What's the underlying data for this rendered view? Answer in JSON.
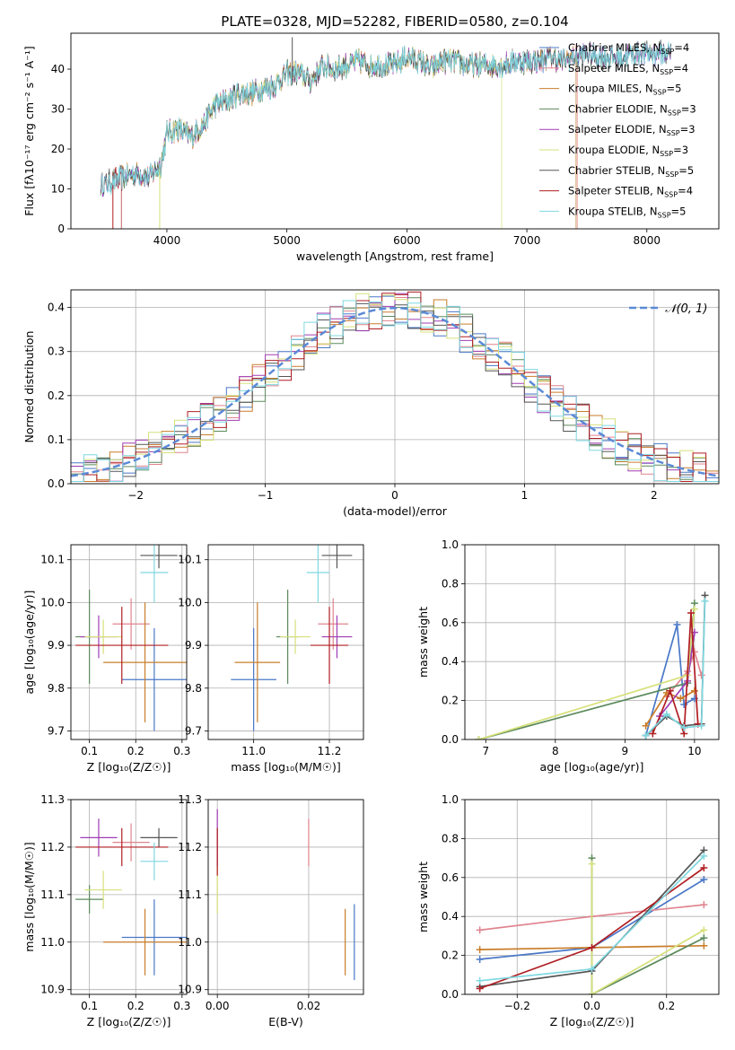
{
  "figure": {
    "title": "PLATE=0328, MJD=52282, FIBERID=0580, z=0.104"
  },
  "legend_entries": [
    {
      "name": "Chabrier MILES, N",
      "sub": "SSP",
      "tail": "=4",
      "color": "#4a78c7"
    },
    {
      "name": "Salpeter MILES, N",
      "sub": "SSP",
      "tail": "=4",
      "color": "#e0848e"
    },
    {
      "name": "Kroupa MILES, N",
      "sub": "SSP",
      "tail": "=5",
      "color": "#c97d2a"
    },
    {
      "name": "Chabrier ELODIE, N",
      "sub": "SSP",
      "tail": "=3",
      "color": "#5c8a5c"
    },
    {
      "name": "Salpeter ELODIE, N",
      "sub": "SSP",
      "tail": "=3",
      "color": "#a03cb4"
    },
    {
      "name": "Kroupa ELODIE, N",
      "sub": "SSP",
      "tail": "=3",
      "color": "#d6e07a"
    },
    {
      "name": "Chabrier STELIB, N",
      "sub": "SSP",
      "tail": "=5",
      "color": "#555555"
    },
    {
      "name": "Salpeter STELIB, N",
      "sub": "SSP",
      "tail": "=4",
      "color": "#b01e22"
    },
    {
      "name": "Kroupa STELIB, N",
      "sub": "SSP",
      "tail": "=5",
      "color": "#7fd8e0"
    }
  ],
  "colors": {
    "cMILES": "#4a78c7",
    "sMILES": "#e0848e",
    "kMILES": "#c97d2a",
    "cELODIE": "#5c8a5c",
    "sELODIE": "#a03cb4",
    "kELODIE": "#d6e07a",
    "cSTELIB": "#555555",
    "sSTELIB": "#b01e22",
    "kSTELIB": "#7fd8e0"
  },
  "chart_data": [
    {
      "id": "spectrum",
      "type": "line",
      "xlabel": "wavelength [Angstrom, rest frame]",
      "ylabel": "Flux [fλ10⁻¹⁷ erg cm⁻² s⁻¹ A⁻¹]",
      "xlim": [
        3200,
        8600
      ],
      "ylim": [
        0,
        49
      ],
      "xticks": [
        4000,
        5000,
        6000,
        7000,
        8000
      ],
      "yticks": [
        0,
        10,
        20,
        30,
        40
      ],
      "x": [
        3450,
        3550,
        3650,
        3750,
        3850,
        3950,
        4000,
        4100,
        4200,
        4300,
        4400,
        4500,
        4600,
        4700,
        4800,
        4900,
        5000,
        5100,
        5200,
        5300,
        5400,
        5500,
        5600,
        5700,
        5800,
        5900,
        6000,
        6100,
        6200,
        6300,
        6400,
        6500,
        6600,
        6700,
        6800,
        6900,
        7000,
        7100,
        7200,
        7300,
        7400,
        7500,
        7600,
        7700,
        7800,
        7900,
        8000,
        8100,
        8200
      ],
      "y": [
        11,
        12,
        13,
        14,
        13,
        16,
        24,
        25,
        23,
        26,
        31,
        32,
        34,
        34,
        35,
        36,
        39,
        39,
        37,
        41,
        40,
        41,
        42,
        41,
        41,
        41,
        43,
        42,
        40,
        42,
        42,
        41,
        41,
        41,
        41,
        42,
        42,
        42,
        43,
        42,
        43,
        44,
        43,
        43,
        43,
        44,
        44,
        44,
        44
      ],
      "grid": false,
      "legend": "top-right"
    },
    {
      "id": "residuals",
      "type": "histogram",
      "xlabel": "(data-model)/error",
      "ylabel": "Normed distribution",
      "xlim": [
        -2.5,
        2.5
      ],
      "ylim": [
        0,
        0.44
      ],
      "xticks": [
        -2,
        -1,
        0,
        1,
        2
      ],
      "yticks": [
        0.0,
        0.1,
        0.2,
        0.3,
        0.4
      ],
      "normal_label": "𝒩(0, 1)",
      "grid": true,
      "legend": "top-right"
    },
    {
      "id": "age_vs_Z",
      "type": "errorbar",
      "xlabel": "Z [log₁₀(Z/Z☉)]",
      "ylabel": "age  [log₁₀(age/yr)]",
      "xlim": [
        0.06,
        0.31
      ],
      "ylim": [
        9.68,
        10.135
      ],
      "xticks": [
        0.1,
        0.2,
        0.3
      ],
      "yticks": [
        9.7,
        9.8,
        9.9,
        10.0,
        10.1
      ],
      "points": [
        {
          "c": "cMILES",
          "x": 0.24,
          "y": 9.82,
          "xe": 0.07,
          "ye": 0.12
        },
        {
          "c": "sMILES",
          "x": 0.19,
          "y": 9.95,
          "xe": 0.04,
          "ye": 0.06
        },
        {
          "c": "kMILES",
          "x": 0.22,
          "y": 9.86,
          "xe": 0.09,
          "ye": 0.14
        },
        {
          "c": "cELODIE",
          "x": 0.1,
          "y": 9.92,
          "xe": 0.03,
          "ye": 0.11
        },
        {
          "c": "sELODIE",
          "x": 0.12,
          "y": 9.92,
          "xe": 0.04,
          "ye": 0.05
        },
        {
          "c": "kELODIE",
          "x": 0.13,
          "y": 9.92,
          "xe": 0.04,
          "ye": 0.04
        },
        {
          "c": "cSTELIB",
          "x": 0.25,
          "y": 10.11,
          "xe": 0.04,
          "ye": 0.03
        },
        {
          "c": "sSTELIB",
          "x": 0.17,
          "y": 9.9,
          "xe": 0.1,
          "ye": 0.09
        },
        {
          "c": "kSTELIB",
          "x": 0.24,
          "y": 10.07,
          "xe": 0.03,
          "ye": 0.07
        }
      ]
    },
    {
      "id": "age_vs_mass",
      "type": "errorbar",
      "xlabel": "mass [log₁₀(M/M☉)]",
      "ylabel": "",
      "xlim": [
        10.88,
        11.29
      ],
      "ylim": [
        9.68,
        10.135
      ],
      "xticks": [
        11.0,
        11.2
      ],
      "yticks": [
        9.7,
        9.8,
        9.9,
        10.0,
        10.1
      ],
      "points": [
        {
          "c": "cMILES",
          "x": 11.0,
          "y": 9.82,
          "xe": 0.06,
          "ye": 0.12
        },
        {
          "c": "sMILES",
          "x": 11.21,
          "y": 9.95,
          "xe": 0.04,
          "ye": 0.06
        },
        {
          "c": "kMILES",
          "x": 11.01,
          "y": 9.86,
          "xe": 0.06,
          "ye": 0.14
        },
        {
          "c": "cELODIE",
          "x": 11.09,
          "y": 9.92,
          "xe": 0.03,
          "ye": 0.11
        },
        {
          "c": "sELODIE",
          "x": 11.22,
          "y": 9.92,
          "xe": 0.04,
          "ye": 0.05
        },
        {
          "c": "kELODIE",
          "x": 11.11,
          "y": 9.92,
          "xe": 0.04,
          "ye": 0.04
        },
        {
          "c": "cSTELIB",
          "x": 11.22,
          "y": 10.11,
          "xe": 0.04,
          "ye": 0.03
        },
        {
          "c": "sSTELIB",
          "x": 11.2,
          "y": 9.9,
          "xe": 0.05,
          "ye": 0.09
        },
        {
          "c": "kSTELIB",
          "x": 11.17,
          "y": 10.07,
          "xe": 0.03,
          "ye": 0.07
        }
      ]
    },
    {
      "id": "weight_vs_age",
      "type": "line",
      "xlabel": "age  [log₁₀(age/yr)]",
      "ylabel": "mass weight",
      "xlim": [
        6.7,
        10.35
      ],
      "ylim": [
        0,
        1.0
      ],
      "xticks": [
        7,
        8,
        9,
        10
      ],
      "yticks": [
        0.0,
        0.2,
        0.4,
        0.6,
        0.8,
        1.0
      ],
      "grid": true,
      "series": [
        {
          "c": "cMILES",
          "x": [
            9.3,
            9.75,
            9.85,
            10.0
          ],
          "y": [
            0.02,
            0.59,
            0.18,
            0.21
          ]
        },
        {
          "c": "sMILES",
          "x": [
            9.6,
            9.9,
            10.0,
            10.1
          ],
          "y": [
            0.22,
            0.35,
            0.45,
            0.33
          ]
        },
        {
          "c": "kMILES",
          "x": [
            9.3,
            9.6,
            9.8,
            10.0
          ],
          "y": [
            0.07,
            0.24,
            0.21,
            0.25
          ]
        },
        {
          "c": "cELODIE",
          "x": [
            6.9,
            9.9,
            10.0
          ],
          "y": [
            0.0,
            0.29,
            0.7
          ]
        },
        {
          "c": "sELODIE",
          "x": [
            9.5,
            9.9,
            10.0
          ],
          "y": [
            0.12,
            0.3,
            0.55
          ]
        },
        {
          "c": "kELODIE",
          "x": [
            6.9,
            9.9,
            10.0
          ],
          "y": [
            0.0,
            0.33,
            0.67
          ]
        },
        {
          "c": "cSTELIB",
          "x": [
            9.3,
            9.6,
            9.85,
            10.1,
            10.15
          ],
          "y": [
            0.02,
            0.12,
            0.07,
            0.08,
            0.74
          ]
        },
        {
          "c": "sSTELIB",
          "x": [
            9.4,
            9.65,
            9.85,
            9.95,
            10.05
          ],
          "y": [
            0.03,
            0.25,
            0.03,
            0.65,
            0.08
          ]
        },
        {
          "c": "kSTELIB",
          "x": [
            9.3,
            9.6,
            9.85,
            10.1,
            10.15
          ],
          "y": [
            0.02,
            0.13,
            0.06,
            0.07,
            0.71
          ]
        }
      ]
    },
    {
      "id": "mass_vs_Z",
      "type": "errorbar",
      "xlabel": "Z [log₁₀(Z/Z☉)]",
      "ylabel": "mass [log₁₀(M/M☉)]",
      "xlim": [
        0.06,
        0.31
      ],
      "ylim": [
        10.89,
        11.3
      ],
      "xticks": [
        0.1,
        0.2,
        0.3
      ],
      "yticks": [
        10.9,
        11.0,
        11.1,
        11.2,
        11.3
      ],
      "points": [
        {
          "c": "cMILES",
          "x": 0.24,
          "y": 11.01,
          "xe": 0.07,
          "ye": 0.08
        },
        {
          "c": "sMILES",
          "x": 0.19,
          "y": 11.21,
          "xe": 0.04,
          "ye": 0.04
        },
        {
          "c": "kMILES",
          "x": 0.22,
          "y": 11.0,
          "xe": 0.09,
          "ye": 0.07
        },
        {
          "c": "cELODIE",
          "x": 0.1,
          "y": 11.09,
          "xe": 0.03,
          "ye": 0.03
        },
        {
          "c": "sELODIE",
          "x": 0.12,
          "y": 11.22,
          "xe": 0.04,
          "ye": 0.04
        },
        {
          "c": "kELODIE",
          "x": 0.13,
          "y": 11.11,
          "xe": 0.04,
          "ye": 0.04
        },
        {
          "c": "cSTELIB",
          "x": 0.25,
          "y": 11.22,
          "xe": 0.04,
          "ye": 0.02
        },
        {
          "c": "sSTELIB",
          "x": 0.17,
          "y": 11.2,
          "xe": 0.1,
          "ye": 0.04
        },
        {
          "c": "kSTELIB",
          "x": 0.24,
          "y": 11.17,
          "xe": 0.03,
          "ye": 0.04
        }
      ]
    },
    {
      "id": "mass_vs_ebv",
      "type": "errorbar",
      "xlabel": "E(B-V)",
      "ylabel": "",
      "xlim": [
        -0.002,
        0.032
      ],
      "ylim": [
        10.89,
        11.3
      ],
      "xticks": [
        0.0,
        0.02
      ],
      "yticks": [
        10.9,
        11.0,
        11.1,
        11.2,
        11.3
      ],
      "points": [
        {
          "c": "cMILES",
          "x": 0.03,
          "y": 11.0,
          "xe": 0,
          "ye": 0.08
        },
        {
          "c": "sMILES",
          "x": 0.02,
          "y": 11.21,
          "xe": 0,
          "ye": 0.05
        },
        {
          "c": "kMILES",
          "x": 0.028,
          "y": 11.0,
          "xe": 0,
          "ye": 0.07
        },
        {
          "c": "sELODIE",
          "x": 0.0,
          "y": 11.22,
          "xe": 0,
          "ye": 0.06
        },
        {
          "c": "kELODIE",
          "x": 0.0,
          "y": 11.11,
          "xe": 0,
          "ye": 0.05
        },
        {
          "c": "sSTELIB",
          "x": 0.0,
          "y": 11.19,
          "xe": 0,
          "ye": 0.05
        }
      ]
    },
    {
      "id": "weight_vs_Z",
      "type": "line",
      "xlabel": "Z [log₁₀(Z/Z☉)]",
      "ylabel": "mass weight",
      "xlim": [
        -0.34,
        0.34
      ],
      "ylim": [
        0,
        1.0
      ],
      "xticks": [
        -0.2,
        0.0,
        0.2
      ],
      "yticks": [
        0.0,
        0.2,
        0.4,
        0.6,
        0.8,
        1.0
      ],
      "grid": true,
      "series": [
        {
          "c": "cMILES",
          "x": [
            -0.3,
            0.0,
            0.3
          ],
          "y": [
            0.18,
            0.24,
            0.59
          ]
        },
        {
          "c": "sMILES",
          "x": [
            -0.3,
            0.0,
            0.3
          ],
          "y": [
            0.33,
            0.4,
            0.46
          ]
        },
        {
          "c": "kMILES",
          "x": [
            -0.3,
            0.0,
            0.3
          ],
          "y": [
            0.23,
            0.24,
            0.25
          ]
        },
        {
          "c": "cELODIE",
          "x": [
            0.0,
            0.0,
            0.3
          ],
          "y": [
            0.7,
            0.0,
            0.29
          ]
        },
        {
          "c": "kELODIE",
          "x": [
            0.0,
            0.0,
            0.3
          ],
          "y": [
            0.67,
            0.0,
            0.33
          ]
        },
        {
          "c": "cSTELIB",
          "x": [
            -0.3,
            0.0,
            0.3
          ],
          "y": [
            0.04,
            0.12,
            0.74
          ]
        },
        {
          "c": "sSTELIB",
          "x": [
            -0.3,
            0.0,
            0.3
          ],
          "y": [
            0.03,
            0.24,
            0.65
          ]
        },
        {
          "c": "kSTELIB",
          "x": [
            -0.3,
            0.0,
            0.3
          ],
          "y": [
            0.07,
            0.13,
            0.71
          ]
        }
      ]
    }
  ]
}
